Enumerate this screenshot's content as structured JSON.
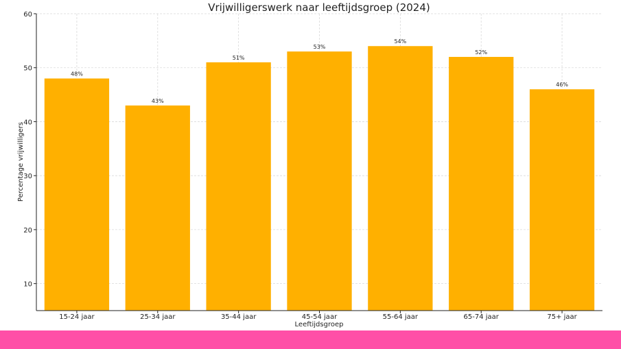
{
  "chart_data": {
    "type": "bar",
    "title": "Vrijwilligerswerk naar leeftijdsgroep (2024)",
    "xlabel": "Leeftijdsgroep",
    "ylabel": "Percentage vrijwilligers",
    "categories": [
      "15-24 jaar",
      "25-34 jaar",
      "35-44 jaar",
      "45-54 jaar",
      "55-64 jaar",
      "65-74 jaar",
      "75+ jaar"
    ],
    "values": [
      48,
      43,
      51,
      53,
      54,
      52,
      46
    ],
    "value_labels": [
      "48%",
      "43%",
      "51%",
      "53%",
      "54%",
      "52%",
      "46%"
    ],
    "ylim": [
      5,
      60
    ],
    "yticks": [
      10,
      20,
      30,
      40,
      50,
      60
    ],
    "grid": true,
    "bar_color": "#FFB000"
  },
  "footer": {
    "band_color": "#FF4FA7"
  }
}
